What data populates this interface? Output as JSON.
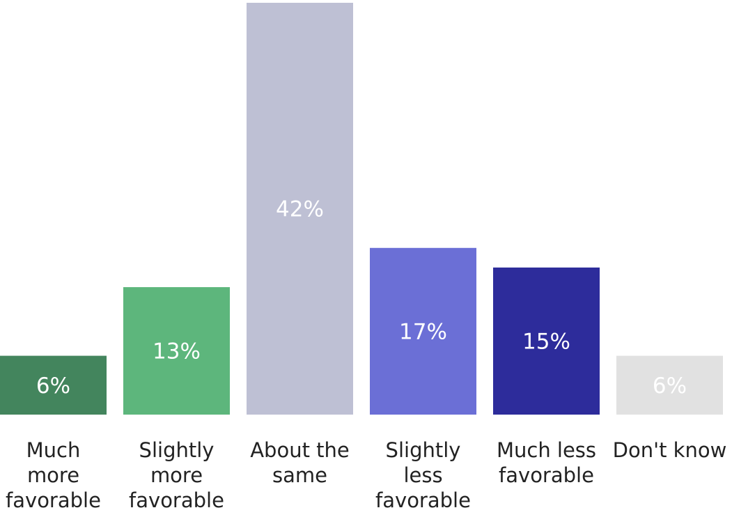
{
  "chart_data": {
    "type": "bar",
    "title": "",
    "xlabel": "",
    "ylabel": "",
    "ylim": [
      0,
      42
    ],
    "grid": false,
    "legend": "none",
    "categories": [
      [
        "Much",
        "more",
        "favorable"
      ],
      [
        "Slightly",
        "more",
        "favorable"
      ],
      [
        "About the",
        "same"
      ],
      [
        "Slightly",
        "less",
        "favorable"
      ],
      [
        "Much less",
        "favorable"
      ],
      [
        "Don't know"
      ]
    ],
    "values": [
      6,
      13,
      42,
      17,
      15,
      6
    ],
    "value_labels": [
      "6%",
      "13%",
      "42%",
      "17%",
      "15%",
      "6%"
    ],
    "bar_colors": [
      "#43855d",
      "#5db67c",
      "#bec0d4",
      "#6b6fd6",
      "#2d2c9b",
      "#e1e1e1"
    ],
    "label_colors": [
      "#ffffff",
      "#ffffff",
      "#ffffff",
      "#ffffff",
      "#ffffff",
      "#ffffff"
    ]
  }
}
